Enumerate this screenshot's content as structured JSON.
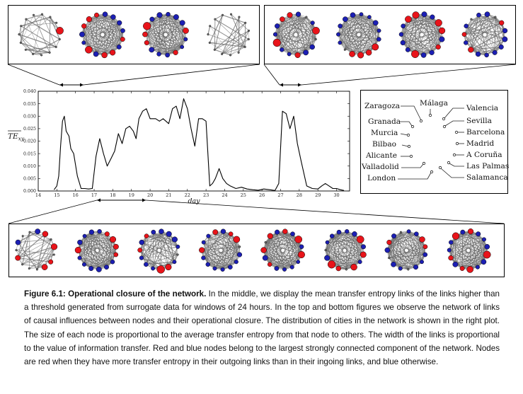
{
  "figure": {
    "caption_label": "Figure 6.1:",
    "caption_title": "Operational closure of the network.",
    "caption_body": " In the middle, we display the mean transfer entropy links of the links higher than a threshold generated from surrogate data for windows of 24 hours. In the top and bottom figures we observe the network of links of causal influences between nodes and their operational closure. The distribution of cities in the network is shown in the right plot. The size of each node is proportional to the average transfer entropy from that node to others. The width of the links is proportional to the value of information transfer. Red and blue nodes belong to the largest strongly connected component of the network. Nodes are red when they have more transfer entropy in their outgoing links than in their ingoing links, and blue otherwise."
  },
  "colors": {
    "red": "#e8141a",
    "blue": "#1c1fb4",
    "edge": "#6a6a6a",
    "grey_node": "#777777"
  },
  "city_map": {
    "cities": [
      "Zaragoza",
      "Málaga",
      "Valencia",
      "Granada",
      "Sevilla",
      "Murcia",
      "Barcelona",
      "Bilbao",
      "Madrid",
      "Alicante",
      "A Coruña",
      "Valladolid",
      "Las Palmas",
      "London",
      "Salamanca"
    ]
  },
  "networks": {
    "top_left": [
      {
        "red": 0.1,
        "blue": 0.05,
        "density": 0.25
      },
      {
        "red": 0.35,
        "blue": 0.55,
        "density": 0.9
      },
      {
        "red": 0.35,
        "blue": 0.55,
        "density": 0.9
      },
      {
        "red": 0.0,
        "blue": 0.05,
        "density": 0.25
      }
    ],
    "top_right": [
      {
        "red": 0.35,
        "blue": 0.55,
        "density": 0.9
      },
      {
        "red": 0.35,
        "blue": 0.55,
        "density": 0.95
      },
      {
        "red": 0.35,
        "blue": 0.55,
        "density": 0.95
      },
      {
        "red": 0.35,
        "blue": 0.45,
        "density": 0.7
      }
    ],
    "bottom": [
      {
        "red": 0.2,
        "blue": 0.1,
        "density": 0.35
      },
      {
        "red": 0.35,
        "blue": 0.55,
        "density": 0.9
      },
      {
        "red": 0.35,
        "blue": 0.55,
        "density": 0.7
      },
      {
        "red": 0.35,
        "blue": 0.55,
        "density": 0.9
      },
      {
        "red": 0.35,
        "blue": 0.55,
        "density": 0.95
      },
      {
        "red": 0.35,
        "blue": 0.55,
        "density": 0.95
      },
      {
        "red": 0.35,
        "blue": 0.55,
        "density": 0.95
      },
      {
        "red": 0.35,
        "blue": 0.55,
        "density": 0.95
      }
    ]
  },
  "chart_data": {
    "type": "line",
    "title": "",
    "xlabel": "day",
    "ylabel": "TE_xy",
    "ylabel_main": "TE",
    "ylabel_sub": "xy",
    "xlim": [
      14,
      30.7
    ],
    "ylim": [
      0,
      0.04
    ],
    "xticks": [
      14,
      15,
      16,
      17,
      18,
      19,
      20,
      21,
      22,
      23,
      24,
      25,
      26,
      27,
      28,
      29,
      30
    ],
    "yticks": [
      0.0,
      0.005,
      0.01,
      0.015,
      0.02,
      0.025,
      0.03,
      0.035,
      0.04
    ],
    "ytick_labels": [
      "0.000",
      "0.005",
      "0.010",
      "0.015",
      "0.020",
      "0.025",
      "0.030",
      "0.035",
      "0.040"
    ],
    "series": [
      {
        "name": "mean TE",
        "x": [
          14.85,
          15.0,
          15.1,
          15.2,
          15.3,
          15.4,
          15.5,
          15.65,
          15.75,
          15.9,
          16.1,
          16.3,
          16.5,
          16.7,
          16.9,
          17.1,
          17.3,
          17.5,
          17.7,
          17.9,
          18.1,
          18.3,
          18.5,
          18.7,
          18.9,
          19.1,
          19.25,
          19.4,
          19.6,
          19.8,
          20.0,
          20.3,
          20.5,
          20.7,
          21.0,
          21.2,
          21.4,
          21.6,
          21.8,
          22.0,
          22.2,
          22.4,
          22.6,
          22.8,
          23.0,
          23.2,
          23.35,
          23.5,
          23.7,
          23.9,
          24.1,
          24.3,
          24.6,
          24.9,
          25.2,
          25.5,
          25.8,
          26.1,
          26.4,
          26.7,
          26.9,
          27.1,
          27.3,
          27.5,
          27.7,
          27.9,
          28.1,
          28.4,
          28.7,
          29.0,
          29.2,
          29.4,
          29.6,
          29.8,
          30.0,
          30.2,
          30.4
        ],
        "y": [
          0.0005,
          0.002,
          0.006,
          0.018,
          0.028,
          0.03,
          0.024,
          0.022,
          0.017,
          0.015,
          0.006,
          0.001,
          0.001,
          0.0008,
          0.001,
          0.014,
          0.021,
          0.015,
          0.01,
          0.013,
          0.016,
          0.023,
          0.019,
          0.025,
          0.026,
          0.024,
          0.021,
          0.029,
          0.032,
          0.033,
          0.029,
          0.029,
          0.028,
          0.029,
          0.027,
          0.033,
          0.034,
          0.029,
          0.037,
          0.033,
          0.025,
          0.018,
          0.029,
          0.029,
          0.028,
          0.002,
          0.003,
          0.005,
          0.009,
          0.005,
          0.003,
          0.002,
          0.001,
          0.0015,
          0.0008,
          0.0005,
          0.0003,
          0.0008,
          0.0005,
          0.0002,
          0.003,
          0.032,
          0.031,
          0.025,
          0.03,
          0.019,
          0.012,
          0.002,
          0.001,
          0.0008,
          0.002,
          0.003,
          0.002,
          0.001,
          0.001,
          0.0005,
          0.0002
        ]
      }
    ]
  }
}
